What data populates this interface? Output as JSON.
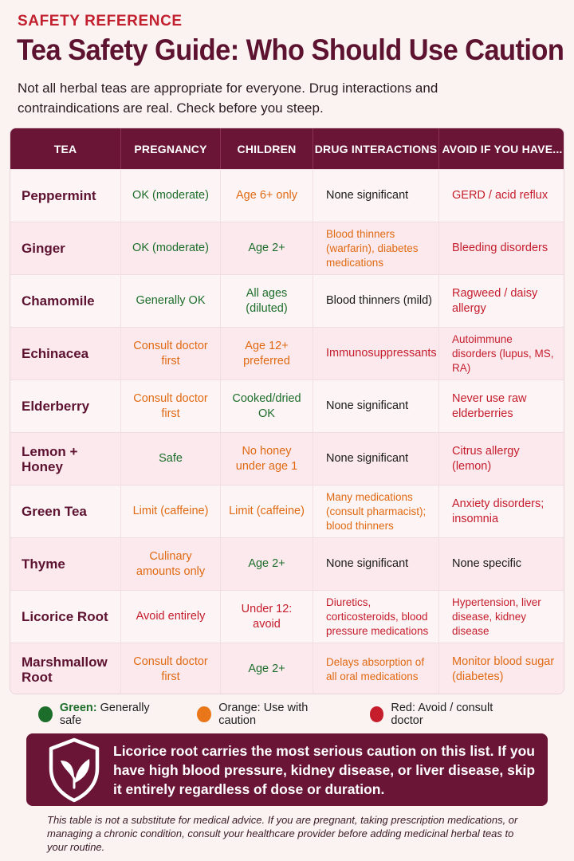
{
  "eyebrow": "SAFETY REFERENCE",
  "title": "Tea Safety Guide: Who Should Use Caution",
  "intro": "Not all herbal teas are appropriate for everyone. Drug interactions and contraindications are real. Check before you steep.",
  "colors": {
    "brand": "#6a1535",
    "green": "#1d6e2a",
    "orange": "#e06a12",
    "red": "#c51d2c"
  },
  "table": {
    "headers": [
      "TEA",
      "PREGNANCY",
      "CHILDREN",
      "DRUG INTERACTIONS",
      "AVOID IF YOU HAVE..."
    ],
    "rows": [
      {
        "tea": "Peppermint",
        "pregnancy": {
          "text": "OK (moderate)",
          "level": "green"
        },
        "children": {
          "text": "Age 6+ only",
          "level": "orange"
        },
        "drugs": {
          "text": "None significant",
          "level": "black"
        },
        "avoid": {
          "text": "GERD / acid reflux",
          "level": "red"
        }
      },
      {
        "tea": "Ginger",
        "pregnancy": {
          "text": "OK (moderate)",
          "level": "green"
        },
        "children": {
          "text": "Age 2+",
          "level": "green"
        },
        "drugs": {
          "text": "Blood thinners (warfarin), diabetes medications",
          "level": "orange"
        },
        "avoid": {
          "text": "Bleeding disorders",
          "level": "red"
        }
      },
      {
        "tea": "Chamomile",
        "pregnancy": {
          "text": "Generally OK",
          "level": "green"
        },
        "children": {
          "text": "All ages (diluted)",
          "level": "green"
        },
        "drugs": {
          "text": "Blood thinners (mild)",
          "level": "black"
        },
        "avoid": {
          "text": "Ragweed / daisy allergy",
          "level": "red"
        }
      },
      {
        "tea": "Echinacea",
        "pregnancy": {
          "text": "Consult doctor first",
          "level": "orange"
        },
        "children": {
          "text": "Age 12+ preferred",
          "level": "orange"
        },
        "drugs": {
          "text": "Immunosuppressants",
          "level": "red"
        },
        "avoid": {
          "text": "Autoimmune disorders (lupus, MS, RA)",
          "level": "red"
        }
      },
      {
        "tea": "Elderberry",
        "pregnancy": {
          "text": "Consult doctor first",
          "level": "orange"
        },
        "children": {
          "text": "Cooked/dried OK",
          "level": "green"
        },
        "drugs": {
          "text": "None significant",
          "level": "black"
        },
        "avoid": {
          "text": "Never use raw elderberries",
          "level": "red"
        }
      },
      {
        "tea": "Lemon + Honey",
        "pregnancy": {
          "text": "Safe",
          "level": "green"
        },
        "children": {
          "text": "No honey under age 1",
          "level": "orange"
        },
        "drugs": {
          "text": "None significant",
          "level": "black"
        },
        "avoid": {
          "text": "Citrus allergy (lemon)",
          "level": "red"
        }
      },
      {
        "tea": "Green Tea",
        "pregnancy": {
          "text": "Limit (caffeine)",
          "level": "orange"
        },
        "children": {
          "text": "Limit (caffeine)",
          "level": "orange"
        },
        "drugs": {
          "text": "Many medications (consult pharmacist); blood thinners",
          "level": "orange"
        },
        "avoid": {
          "text": "Anxiety disorders; insomnia",
          "level": "red"
        }
      },
      {
        "tea": "Thyme",
        "pregnancy": {
          "text": "Culinary amounts only",
          "level": "orange"
        },
        "children": {
          "text": "Age 2+",
          "level": "green"
        },
        "drugs": {
          "text": "None significant",
          "level": "black"
        },
        "avoid": {
          "text": "None specific",
          "level": "black"
        }
      },
      {
        "tea": "Licorice Root",
        "pregnancy": {
          "text": "Avoid entirely",
          "level": "red"
        },
        "children": {
          "text": "Under 12: avoid",
          "level": "red"
        },
        "drugs": {
          "text": "Diuretics, corticosteroids, blood pressure medications",
          "level": "red"
        },
        "avoid": {
          "text": "Hypertension, liver disease, kidney disease",
          "level": "red"
        }
      },
      {
        "tea": "Marshmallow Root",
        "pregnancy": {
          "text": "Consult doctor first",
          "level": "orange"
        },
        "children": {
          "text": "Age 2+",
          "level": "green"
        },
        "drugs": {
          "text": "Delays absorption of all oral medications",
          "level": "orange"
        },
        "avoid": {
          "text": "Monitor blood sugar (diabetes)",
          "level": "orange"
        }
      }
    ]
  },
  "legend": {
    "green_label": "Green:",
    "green_text": " Generally safe",
    "orange_text": "Orange: Use with caution",
    "red_text": "Red: Avoid / consult doctor"
  },
  "callout": {
    "icon": "shield-leaf-icon",
    "text": "Licorice root carries the most serious caution on this list. If you have high blood pressure, kidney disease, or liver disease, skip it entirely regardless of dose or duration."
  },
  "disclaimer": "This table is not a substitute for medical advice. If you are pregnant, taking prescription medications, or managing a chronic condition, consult your healthcare provider before adding medicinal herbal teas to your routine."
}
